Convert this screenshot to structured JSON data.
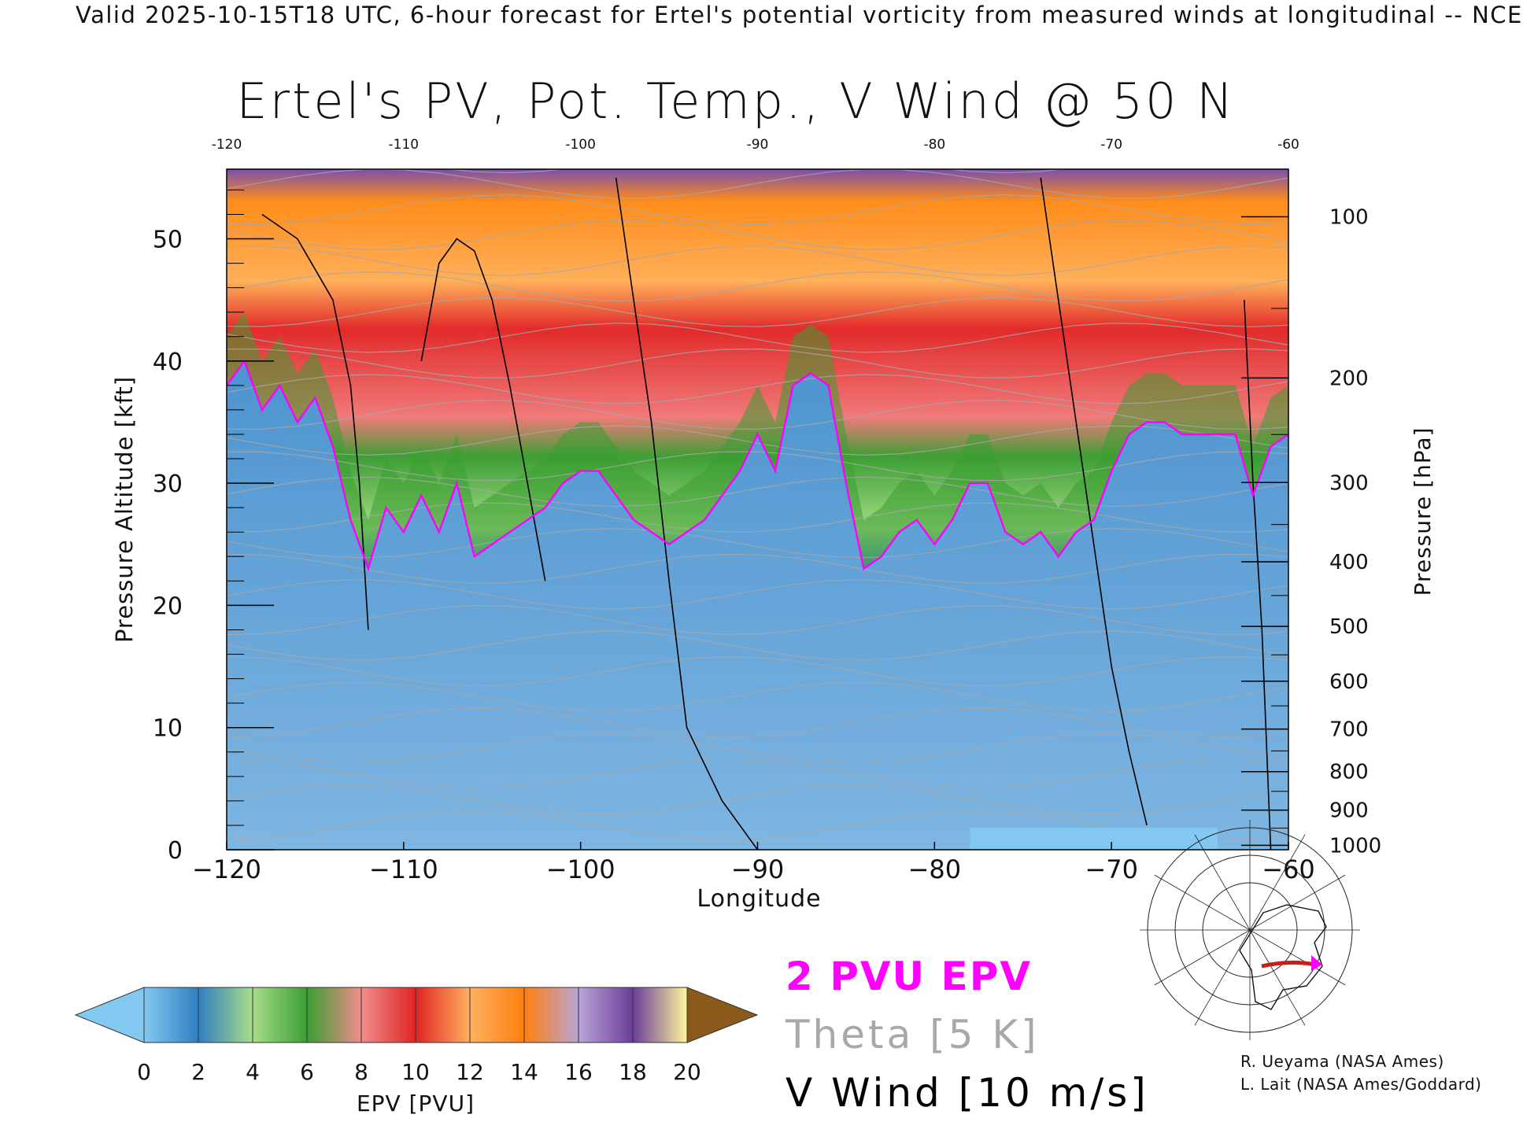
{
  "header": {
    "banner": "Valid 2025-10-15T18 UTC, 6-hour forecast for Ertel's potential vorticity from measured winds at longitudinal -- NCE",
    "title": "Ertel's PV, Pot. Temp., V Wind @ 50 N"
  },
  "legend": {
    "pvu_label": "2 PVU EPV",
    "theta_label": "Theta [5 K]",
    "wind_label": "V Wind [10 m/s]",
    "pvu_color": "#ff00ff",
    "theta_color": "#a8a8a8",
    "wind_color": "#000000"
  },
  "colorbar": {
    "label": "EPV [PVU]",
    "ticks": [
      "0",
      "2",
      "4",
      "6",
      "8",
      "10",
      "12",
      "14",
      "16",
      "18",
      "20"
    ],
    "colors": [
      "#82c8f0",
      "#2f7fc1",
      "#a8dd8a",
      "#3a9e32",
      "#f28c8c",
      "#e02424",
      "#ffb060",
      "#ff7f0e",
      "#b9a5d6",
      "#6a3d9a",
      "#fff59a",
      "#8b5a1c"
    ]
  },
  "credits": {
    "line1": "R. Ueyama (NASA Ames)",
    "line2": "L. Lait (NASA Ames/Goddard)"
  },
  "map": {
    "highlight_color": "#c81e1e",
    "marker_color": "#ff00ff"
  },
  "chart_data": {
    "type": "heatmap",
    "title": "Ertel's PV, Pot. Temp., V Wind @ 50 N",
    "xlabel": "Longitude",
    "ylabel": "Pressure Altitude [kft]",
    "y2label": "Pressure [hPa]",
    "xlim": [
      -120,
      -60
    ],
    "ylim": [
      0,
      55.7
    ],
    "x_ticks": [
      -120,
      -110,
      -100,
      -90,
      -80,
      -70,
      -60
    ],
    "x_tick_labels": [
      "−120",
      "−110",
      "−100",
      "−90",
      "−80",
      "−70",
      "−60"
    ],
    "top_ticks": [
      "-120",
      "-110",
      "-100",
      "-90",
      "-80",
      "-70",
      "-60"
    ],
    "y_ticks": [
      0,
      10,
      20,
      30,
      40,
      50
    ],
    "pressure_ticks": [
      {
        "hPa": 100,
        "label": "100"
      },
      {
        "hPa": 200,
        "label": "200"
      },
      {
        "hPa": 300,
        "label": "300"
      },
      {
        "hPa": 400,
        "label": "400"
      },
      {
        "hPa": 500,
        "label": "500"
      },
      {
        "hPa": 600,
        "label": "600"
      },
      {
        "hPa": 700,
        "label": "700"
      },
      {
        "hPa": 800,
        "label": "800"
      },
      {
        "hPa": 900,
        "label": "900"
      },
      {
        "hPa": 1000,
        "label": "1000"
      }
    ],
    "tropopause_2pvu": {
      "lon": [
        -120,
        -119,
        -118,
        -117,
        -116,
        -115,
        -114,
        -113,
        -112,
        -111,
        -110,
        -109,
        -108,
        -107,
        -106,
        -105,
        -104,
        -103,
        -102,
        -101,
        -100,
        -99,
        -98,
        -97,
        -96,
        -95,
        -94,
        -93,
        -92,
        -91,
        -90,
        -89,
        -88,
        -87,
        -86,
        -85,
        -84,
        -83,
        -82,
        -81,
        -80,
        -79,
        -78,
        -77,
        -76,
        -75,
        -74,
        -73,
        -72,
        -71,
        -70,
        -69,
        -68,
        -67,
        -66,
        -65,
        -64,
        -63,
        -62,
        -61,
        -60
      ],
      "kft": [
        38,
        40,
        36,
        38,
        35,
        37,
        33,
        27,
        23,
        28,
        26,
        29,
        26,
        30,
        24,
        25,
        26,
        27,
        28,
        30,
        31,
        31,
        29,
        27,
        26,
        25,
        26,
        27,
        29,
        31,
        34,
        31,
        38,
        39,
        38,
        30,
        23,
        24,
        26,
        27,
        25,
        27,
        30,
        30,
        26,
        25,
        26,
        24,
        26,
        27,
        31,
        34,
        35,
        35,
        34,
        34,
        34,
        34,
        29,
        33,
        34
      ]
    },
    "vwind_zero_lines": [
      {
        "lon": [
          -118,
          -116,
          -114,
          -113,
          -112.5,
          -112
        ],
        "kft": [
          52,
          50,
          45,
          38,
          30,
          18
        ]
      },
      {
        "lon": [
          -109,
          -108,
          -107,
          -106,
          -105,
          -104,
          -103,
          -102
        ],
        "kft": [
          40,
          48,
          50,
          49,
          45,
          38,
          30,
          22
        ]
      },
      {
        "lon": [
          -98,
          -97,
          -96,
          -95,
          -94,
          -92,
          -90
        ],
        "kft": [
          55,
          45,
          35,
          22,
          10,
          4,
          0
        ]
      },
      {
        "lon": [
          -74,
          -73,
          -72,
          -71,
          -70,
          -69,
          -68
        ],
        "kft": [
          55,
          45,
          35,
          25,
          15,
          8,
          2
        ]
      },
      {
        "lon": [
          -62.5,
          -62,
          -61.5,
          -61
        ],
        "kft": [
          45,
          30,
          18,
          0
        ]
      }
    ],
    "colorbar_levels": [
      0,
      2,
      4,
      6,
      8,
      10,
      12,
      14,
      16,
      18,
      20
    ],
    "colorbar_extend": "both",
    "grid": false
  }
}
